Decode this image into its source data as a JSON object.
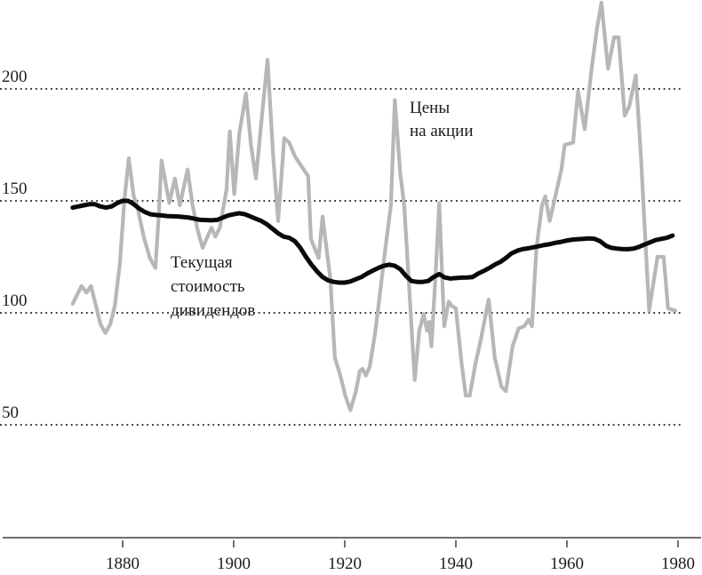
{
  "chart_data": {
    "type": "line",
    "title": "",
    "xlabel": "",
    "ylabel": "",
    "grid": {
      "style": "dotted",
      "orientation": "horizontal"
    },
    "legend": "none (inline annotations)",
    "x_range_years": [
      1871,
      1979.5
    ],
    "ylim": [
      40,
      240
    ],
    "x_axis": {
      "ticks": [
        {
          "value": 1880,
          "label": "1880"
        },
        {
          "value": 1900,
          "label": "1900"
        },
        {
          "value": 1920,
          "label": "1920"
        },
        {
          "value": 1940,
          "label": "1940"
        },
        {
          "value": 1960,
          "label": "1960"
        },
        {
          "value": 1980,
          "label": "1980"
        }
      ]
    },
    "y_axis": {
      "ticks": [
        {
          "value": 200,
          "label": "200"
        },
        {
          "value": 150,
          "label": "150"
        },
        {
          "value": 100,
          "label": "100"
        },
        {
          "value": 50,
          "label": "50"
        }
      ]
    },
    "annotations": [
      {
        "id": "stock-prices-label",
        "lines": [
          "Цены",
          "на акции"
        ],
        "x": 461,
        "y": 127,
        "line_dy": 26
      },
      {
        "id": "dividend-present-value-label",
        "lines": [
          "Текущая",
          "стоимость",
          "дивидендов"
        ],
        "x": 192,
        "y": 301,
        "line_dy": 27
      }
    ],
    "series": [
      {
        "name": "Цены на акции",
        "role": "stock-prices",
        "color": "#b7b7b7",
        "stroke_width": 4.2,
        "points": [
          [
            1871,
            104
          ],
          [
            1872,
            109
          ],
          [
            1872.6,
            112
          ],
          [
            1873.5,
            109
          ],
          [
            1874.3,
            112
          ],
          [
            1875,
            105
          ],
          [
            1876,
            95
          ],
          [
            1876.9,
            91
          ],
          [
            1877.8,
            95
          ],
          [
            1878.6,
            103
          ],
          [
            1879.5,
            122
          ],
          [
            1880.3,
            150
          ],
          [
            1881.1,
            169
          ],
          [
            1882,
            152
          ],
          [
            1882.6,
            148
          ],
          [
            1883.8,
            134
          ],
          [
            1884.9,
            124.5
          ],
          [
            1885.9,
            120
          ],
          [
            1886.5,
            143
          ],
          [
            1887,
            168
          ],
          [
            1888.4,
            149
          ],
          [
            1889.4,
            160
          ],
          [
            1890.3,
            148
          ],
          [
            1891.7,
            164
          ],
          [
            1892.6,
            148
          ],
          [
            1893.5,
            137
          ],
          [
            1894.4,
            129
          ],
          [
            1896,
            138
          ],
          [
            1896.7,
            134
          ],
          [
            1897.5,
            138
          ],
          [
            1898.7,
            155
          ],
          [
            1899.3,
            181
          ],
          [
            1900.1,
            153
          ],
          [
            1901,
            180
          ],
          [
            1902.2,
            198
          ],
          [
            1903.1,
            175
          ],
          [
            1904,
            160
          ],
          [
            1905,
            186
          ],
          [
            1906.1,
            213
          ],
          [
            1907.1,
            170
          ],
          [
            1908,
            141
          ],
          [
            1909.1,
            178
          ],
          [
            1910,
            176
          ],
          [
            1911,
            170
          ],
          [
            1911.8,
            167
          ],
          [
            1913.4,
            161
          ],
          [
            1913.9,
            133
          ],
          [
            1915.3,
            124.5
          ],
          [
            1916,
            143
          ],
          [
            1917.4,
            115
          ],
          [
            1918.2,
            80
          ],
          [
            1919.2,
            72
          ],
          [
            1920.1,
            63
          ],
          [
            1921,
            56.5
          ],
          [
            1922,
            65
          ],
          [
            1922.7,
            74
          ],
          [
            1923.2,
            75
          ],
          [
            1923.8,
            72
          ],
          [
            1924.5,
            76
          ],
          [
            1925.4,
            90
          ],
          [
            1926.2,
            106
          ],
          [
            1927.3,
            128.5
          ],
          [
            1928.3,
            148
          ],
          [
            1929,
            195
          ],
          [
            1930,
            162
          ],
          [
            1930.7,
            148
          ],
          [
            1931.5,
            115
          ],
          [
            1932.6,
            70
          ],
          [
            1933.4,
            92
          ],
          [
            1934.2,
            99.5
          ],
          [
            1934.8,
            92
          ],
          [
            1935.2,
            96
          ],
          [
            1935.6,
            85
          ],
          [
            1936.3,
            115
          ],
          [
            1937,
            149
          ],
          [
            1937.9,
            94
          ],
          [
            1938.7,
            105
          ],
          [
            1939.3,
            103
          ],
          [
            1940,
            102
          ],
          [
            1941,
            78
          ],
          [
            1941.8,
            63
          ],
          [
            1942.5,
            63
          ],
          [
            1943.5,
            77
          ],
          [
            1944.5,
            88
          ],
          [
            1945.2,
            97
          ],
          [
            1945.9,
            106
          ],
          [
            1947,
            80
          ],
          [
            1948.2,
            67
          ],
          [
            1949,
            65
          ],
          [
            1950.2,
            85
          ],
          [
            1951.3,
            93
          ],
          [
            1952.3,
            94
          ],
          [
            1953.1,
            97
          ],
          [
            1953.7,
            94
          ],
          [
            1954.5,
            128.5
          ],
          [
            1955.5,
            148
          ],
          [
            1956.1,
            152
          ],
          [
            1956.9,
            141
          ],
          [
            1958,
            153
          ],
          [
            1959,
            164
          ],
          [
            1959.6,
            175
          ],
          [
            1961.1,
            176
          ],
          [
            1962,
            199
          ],
          [
            1963.2,
            182
          ],
          [
            1964.5,
            210
          ],
          [
            1965.4,
            227
          ],
          [
            1966.2,
            238.5
          ],
          [
            1967.4,
            209
          ],
          [
            1968.5,
            223
          ],
          [
            1969.3,
            223
          ],
          [
            1970.4,
            188
          ],
          [
            1971.2,
            192
          ],
          [
            1972.4,
            206
          ],
          [
            1973.3,
            171
          ],
          [
            1974.8,
            101
          ],
          [
            1976.3,
            125
          ],
          [
            1977.4,
            125
          ],
          [
            1978.2,
            102
          ],
          [
            1979.5,
            101
          ]
        ]
      },
      {
        "name": "Текущая стоимость дивидендов",
        "role": "dividend-present-value",
        "color": "#0a0a0a",
        "stroke_width": 5,
        "points": [
          [
            1871,
            147
          ],
          [
            1872,
            147.5
          ],
          [
            1873,
            148
          ],
          [
            1874,
            148.5
          ],
          [
            1875,
            148.5
          ],
          [
            1876,
            147.5
          ],
          [
            1877,
            147
          ],
          [
            1878,
            147.5
          ],
          [
            1879,
            149
          ],
          [
            1880,
            150
          ],
          [
            1881,
            150
          ],
          [
            1882,
            148.5
          ],
          [
            1883,
            146.5
          ],
          [
            1884,
            145
          ],
          [
            1885,
            144
          ],
          [
            1886,
            143.7
          ],
          [
            1887,
            143.5
          ],
          [
            1888,
            143.2
          ],
          [
            1890,
            143
          ],
          [
            1892,
            142.5
          ],
          [
            1894,
            141.5
          ],
          [
            1896,
            141.3
          ],
          [
            1897,
            141.5
          ],
          [
            1898,
            142.5
          ],
          [
            1899,
            143.5
          ],
          [
            1900,
            144
          ],
          [
            1901,
            144.5
          ],
          [
            1902,
            144
          ],
          [
            1903,
            143
          ],
          [
            1904,
            142
          ],
          [
            1905,
            141
          ],
          [
            1906,
            139.5
          ],
          [
            1907,
            137.5
          ],
          [
            1908,
            135.5
          ],
          [
            1909,
            134
          ],
          [
            1910,
            133.5
          ],
          [
            1911,
            132
          ],
          [
            1912,
            129
          ],
          [
            1913,
            125
          ],
          [
            1914,
            121.5
          ],
          [
            1915,
            118.5
          ],
          [
            1916,
            116
          ],
          [
            1917,
            114.5
          ],
          [
            1918,
            113.8
          ],
          [
            1919,
            113.5
          ],
          [
            1920,
            113.5
          ],
          [
            1921,
            114
          ],
          [
            1922,
            115
          ],
          [
            1923,
            116
          ],
          [
            1924,
            117.5
          ],
          [
            1925,
            118.8
          ],
          [
            1926,
            120
          ],
          [
            1927,
            121
          ],
          [
            1928,
            121.5
          ],
          [
            1929,
            121
          ],
          [
            1930,
            119.5
          ],
          [
            1931,
            116.5
          ],
          [
            1932,
            114.2
          ],
          [
            1933,
            113.8
          ],
          [
            1934,
            113.8
          ],
          [
            1935,
            114.2
          ],
          [
            1936,
            116
          ],
          [
            1937,
            117.3
          ],
          [
            1938,
            115.8
          ],
          [
            1939,
            115.3
          ],
          [
            1940,
            115.5
          ],
          [
            1941,
            115.7
          ],
          [
            1942,
            115.8
          ],
          [
            1943,
            116
          ],
          [
            1944,
            117.5
          ],
          [
            1945,
            118.7
          ],
          [
            1946,
            120
          ],
          [
            1947,
            121.5
          ],
          [
            1948,
            122.7
          ],
          [
            1949,
            124.5
          ],
          [
            1950,
            126.5
          ],
          [
            1951,
            127.7
          ],
          [
            1952,
            128.4
          ],
          [
            1953,
            128.8
          ],
          [
            1954,
            129.3
          ],
          [
            1955,
            129.8
          ],
          [
            1956,
            130.3
          ],
          [
            1957,
            130.7
          ],
          [
            1958,
            131.3
          ],
          [
            1959,
            131.7
          ],
          [
            1960,
            132.3
          ],
          [
            1961,
            132.7
          ],
          [
            1962,
            132.9
          ],
          [
            1963,
            133
          ],
          [
            1964,
            133.2
          ],
          [
            1965,
            133
          ],
          [
            1966,
            132
          ],
          [
            1967,
            130
          ],
          [
            1968,
            129
          ],
          [
            1969,
            128.7
          ],
          [
            1970,
            128.5
          ],
          [
            1971,
            128.4
          ],
          [
            1972,
            128.7
          ],
          [
            1973,
            129.5
          ],
          [
            1974,
            130.5
          ],
          [
            1975,
            131.5
          ],
          [
            1976,
            132.5
          ],
          [
            1977,
            133
          ],
          [
            1978,
            133.5
          ],
          [
            1979,
            134.5
          ]
        ]
      }
    ]
  },
  "style": {
    "gridline_color": "#1a1a1a",
    "axis_line_color": "#6e6e6e",
    "tick_color": "#222222",
    "text_color": "#1c1c1c",
    "background": "#ffffff"
  }
}
